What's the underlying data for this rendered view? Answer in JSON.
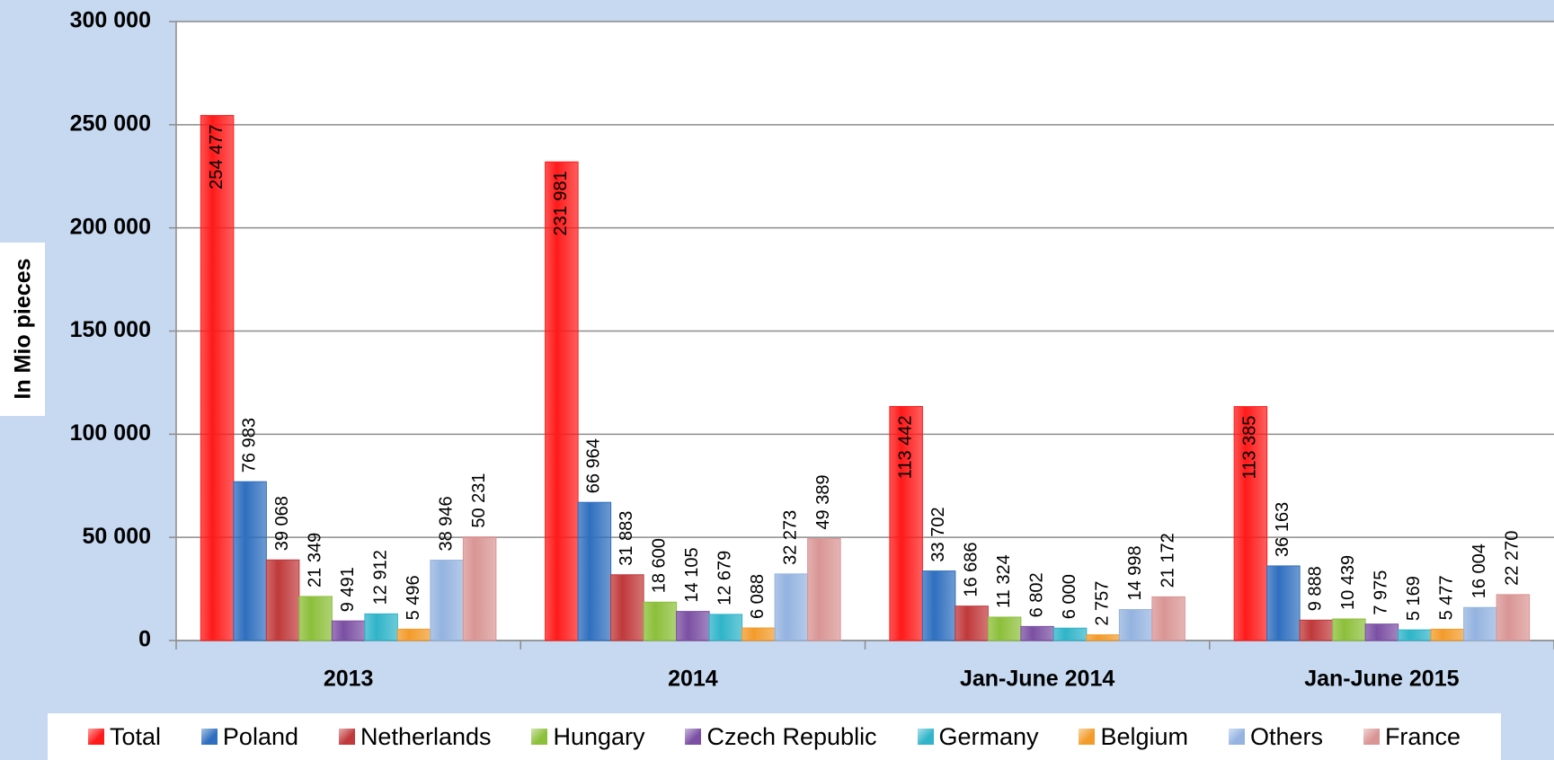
{
  "chart_data": {
    "type": "bar",
    "y_label": "In Mio pieces",
    "categories": [
      "2013",
      "2014",
      "Jan-June 2014",
      "Jan-June 2015"
    ],
    "ylim": [
      0,
      300000
    ],
    "yticks": [
      0,
      {
        "value": 50000,
        "label": "50 000"
      },
      {
        "value": 100000,
        "label": "100 000"
      },
      {
        "value": 150000,
        "label": "150 000"
      },
      {
        "value": 200000,
        "label": "200 000"
      },
      {
        "value": 250000,
        "label": "250 000"
      },
      {
        "value": 300000,
        "label": "300 000"
      }
    ],
    "grid": true,
    "legend": "bottom",
    "series": [
      {
        "name": "Total",
        "color": "#ff1a1a",
        "values": [
          254477,
          231981,
          113442,
          113385
        ],
        "value_labels": [
          "254 477",
          "231 981",
          "113 442",
          "113 385"
        ]
      },
      {
        "name": "Poland",
        "color": "#2f6fbf",
        "values": [
          76983,
          66964,
          33702,
          36163
        ],
        "value_labels": [
          "76 983",
          "66 964",
          "33 702",
          "36 163"
        ]
      },
      {
        "name": "Netherlands",
        "color": "#c0393b",
        "values": [
          39068,
          31883,
          16686,
          9888
        ],
        "value_labels": [
          "39 068",
          "31 883",
          "16 686",
          "9 888"
        ]
      },
      {
        "name": "Hungary",
        "color": "#8cbf3a",
        "values": [
          21349,
          18600,
          11324,
          10439
        ],
        "value_labels": [
          "21 349",
          "18 600",
          "11 324",
          "10 439"
        ]
      },
      {
        "name": "Czech Republic",
        "color": "#7b4fa3",
        "values": [
          9491,
          14105,
          6802,
          7975
        ],
        "value_labels": [
          "9 491",
          "14 105",
          "6 802",
          "7 975"
        ]
      },
      {
        "name": "Germany",
        "color": "#2fb4c9",
        "values": [
          12912,
          12679,
          6000,
          5169
        ],
        "value_labels": [
          "12 912",
          "12 679",
          "6 000",
          "5 169"
        ]
      },
      {
        "name": "Belgium",
        "color": "#f39b2a",
        "values": [
          5496,
          6088,
          2757,
          5477
        ],
        "value_labels": [
          "5 496",
          "6 088",
          "2 757",
          "5 477"
        ]
      },
      {
        "name": "Others",
        "color": "#94b3e0",
        "values": [
          38946,
          32273,
          14998,
          16004
        ],
        "value_labels": [
          "38 946",
          "32 273",
          "14 998",
          "16 004"
        ]
      },
      {
        "name": "France",
        "color": "#d99594",
        "values": [
          50231,
          49389,
          21172,
          22270
        ],
        "value_labels": [
          "50 231",
          "49 389",
          "21 172",
          "22 270"
        ]
      }
    ]
  }
}
